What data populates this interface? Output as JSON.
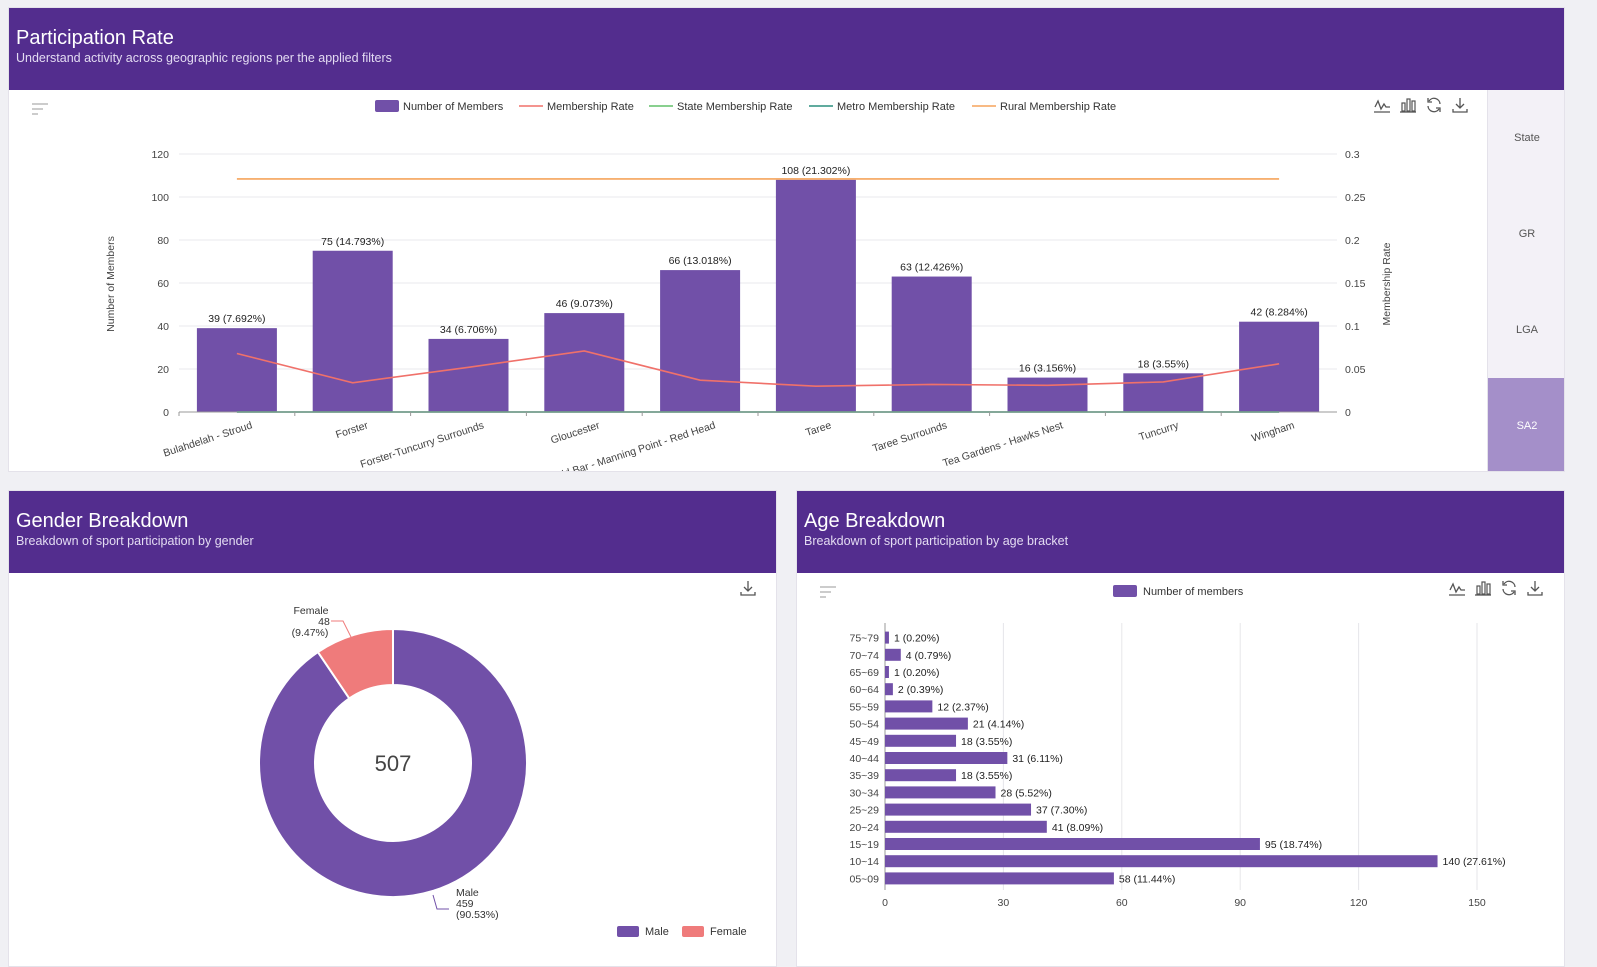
{
  "colors": {
    "header": "#532d8e",
    "bar": "#7150a8",
    "membership": "#f0716a",
    "state": "#62c06a",
    "metro": "#2c8f7e",
    "rural": "#f5a45c",
    "female": "#ef7b7b"
  },
  "participation": {
    "title": "Participation Rate",
    "subtitle": "Understand activity across geographic regions per the applied filters",
    "legend": [
      "Number of Members",
      "Membership Rate",
      "State Membership Rate",
      "Metro Membership Rate",
      "Rural Membership Rate"
    ],
    "side_tabs": [
      "State",
      "GR",
      "LGA",
      "SA2"
    ],
    "active_tab": "SA2",
    "icons": [
      "filter-icon",
      "line-chart-icon",
      "bar-chart-icon",
      "refresh-icon",
      "download-icon"
    ]
  },
  "gender": {
    "title": "Gender Breakdown",
    "subtitle": "Breakdown of sport participation by gender",
    "total": "507",
    "label_male": [
      "Male",
      "459",
      "(90.53%)"
    ],
    "label_female": [
      "Female",
      "48",
      "(9.47%)"
    ],
    "legend": [
      "Male",
      "Female"
    ]
  },
  "age": {
    "title": "Age Breakdown",
    "subtitle": "Breakdown of sport participation by age bracket",
    "legend": [
      "Number of members"
    ]
  },
  "chart_data": [
    {
      "type": "bar",
      "id": "participation",
      "categories": [
        "Bulahdelah - Stroud",
        "Forster",
        "Forster-Tuncurry Surrounds",
        "Gloucester",
        "Old Bar - Manning Point - Red Head",
        "Taree",
        "Taree Surrounds",
        "Tea Gardens - Hawks Nest",
        "Tuncurry",
        "Wingham"
      ],
      "values": [
        39,
        75,
        34,
        46,
        66,
        108,
        63,
        16,
        18,
        42
      ],
      "data_labels": [
        "39 (7.692%)",
        "75 (14.793%)",
        "34 (6.706%)",
        "46 (9.073%)",
        "66 (13.018%)",
        "108 (21.302%)",
        "63 (12.426%)",
        "16 (3.156%)",
        "18 (3.55%)",
        "42 (8.284%)"
      ],
      "series": [
        {
          "name": "Membership Rate",
          "axis": "right",
          "values": [
            0.068,
            0.034,
            0.052,
            0.071,
            0.037,
            0.03,
            0.032,
            0.031,
            0.035,
            0.056
          ]
        },
        {
          "name": "State Membership Rate",
          "axis": "right",
          "values": [
            0,
            0,
            0,
            0,
            0,
            0,
            0,
            0,
            0,
            0
          ]
        },
        {
          "name": "Metro Membership Rate",
          "axis": "right",
          "values": [
            0,
            0,
            0,
            0,
            0,
            0,
            0,
            0,
            0,
            0
          ]
        },
        {
          "name": "Rural Membership Rate",
          "axis": "right",
          "values": [
            0.271,
            0.271,
            0.271,
            0.271,
            0.271,
            0.271,
            0.271,
            0.271,
            0.271,
            0.271
          ]
        }
      ],
      "ylabel": "Number of Members",
      "y2label": "Membership Rate",
      "ylim": [
        0,
        120
      ],
      "y_ticks": [
        0,
        20,
        40,
        60,
        80,
        100,
        120
      ],
      "y2lim": [
        0,
        0.3
      ],
      "y2_ticks": [
        "0",
        "0.05",
        "0.1",
        "0.15",
        "0.2",
        "0.25",
        "0.3"
      ]
    },
    {
      "type": "pie",
      "id": "gender",
      "labels": [
        "Male",
        "Female"
      ],
      "values": [
        459,
        48
      ],
      "percentages": [
        90.53,
        9.47
      ]
    },
    {
      "type": "bar",
      "id": "age",
      "orientation": "horizontal",
      "categories": [
        "75~79",
        "70~74",
        "65~69",
        "60~64",
        "55~59",
        "50~54",
        "45~49",
        "40~44",
        "35~39",
        "30~34",
        "25~29",
        "20~24",
        "15~19",
        "10~14",
        "05~09"
      ],
      "values": [
        1,
        4,
        1,
        2,
        12,
        21,
        18,
        31,
        18,
        28,
        37,
        41,
        95,
        140,
        58
      ],
      "data_labels": [
        "1 (0.20%)",
        "4 (0.79%)",
        "1 (0.20%)",
        "2 (0.39%)",
        "12 (2.37%)",
        "21 (4.14%)",
        "18 (3.55%)",
        "31 (6.11%)",
        "18 (3.55%)",
        "28 (5.52%)",
        "37 (7.30%)",
        "41 (8.09%)",
        "95 (18.74%)",
        "140 (27.61%)",
        "58 (11.44%)"
      ],
      "xlim": [
        0,
        150
      ],
      "x_ticks": [
        0,
        30,
        60,
        90,
        120,
        150
      ]
    }
  ]
}
